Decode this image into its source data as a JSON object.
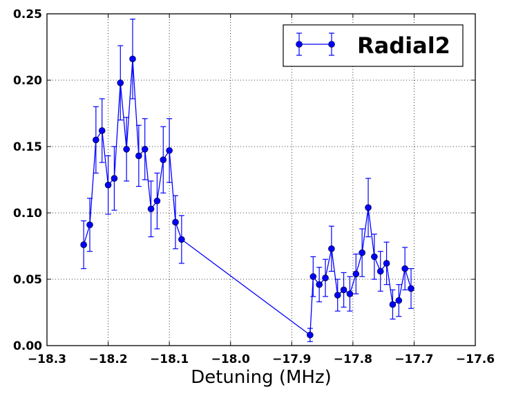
{
  "chart_data": {
    "type": "scatter",
    "title": "",
    "xlabel": "Detuning (MHz)",
    "ylabel": "",
    "xlim": [
      -18.3,
      -17.6
    ],
    "ylim": [
      0.0,
      0.25
    ],
    "xticks": [
      -18.3,
      -18.2,
      -18.1,
      -18.0,
      -17.9,
      -17.8,
      -17.7,
      -17.6
    ],
    "xtick_labels": [
      "−18.3",
      "−18.2",
      "−18.1",
      "−18.0",
      "−17.9",
      "−17.8",
      "−17.7",
      "−17.6"
    ],
    "yticks": [
      0.0,
      0.05,
      0.1,
      0.15,
      0.2,
      0.25
    ],
    "ytick_labels": [
      "0.00",
      "0.05",
      "0.10",
      "0.15",
      "0.20",
      "0.25"
    ],
    "grid": true,
    "grid_style": "dotted",
    "legend_position": "top-right",
    "series": [
      {
        "name": "Radial2",
        "color": "#0000ff",
        "marker": "circle",
        "line": true,
        "points": [
          {
            "x": -18.24,
            "y": 0.076,
            "err": 0.018
          },
          {
            "x": -18.23,
            "y": 0.091,
            "err": 0.02
          },
          {
            "x": -18.22,
            "y": 0.155,
            "err": 0.025
          },
          {
            "x": -18.21,
            "y": 0.162,
            "err": 0.024
          },
          {
            "x": -18.2,
            "y": 0.121,
            "err": 0.022
          },
          {
            "x": -18.19,
            "y": 0.126,
            "err": 0.024
          },
          {
            "x": -18.18,
            "y": 0.198,
            "err": 0.028
          },
          {
            "x": -18.17,
            "y": 0.148,
            "err": 0.024
          },
          {
            "x": -18.16,
            "y": 0.216,
            "err": 0.03
          },
          {
            "x": -18.15,
            "y": 0.143,
            "err": 0.023
          },
          {
            "x": -18.14,
            "y": 0.148,
            "err": 0.023
          },
          {
            "x": -18.13,
            "y": 0.103,
            "err": 0.021
          },
          {
            "x": -18.12,
            "y": 0.109,
            "err": 0.021
          },
          {
            "x": -18.11,
            "y": 0.14,
            "err": 0.025
          },
          {
            "x": -18.1,
            "y": 0.147,
            "err": 0.024
          },
          {
            "x": -18.09,
            "y": 0.093,
            "err": 0.02
          },
          {
            "x": -18.08,
            "y": 0.08,
            "err": 0.018
          },
          {
            "x": -17.87,
            "y": 0.008,
            "err": 0.005
          },
          {
            "x": -17.865,
            "y": 0.052,
            "err": 0.015
          },
          {
            "x": -17.855,
            "y": 0.046,
            "err": 0.013
          },
          {
            "x": -17.845,
            "y": 0.051,
            "err": 0.014
          },
          {
            "x": -17.835,
            "y": 0.073,
            "err": 0.017
          },
          {
            "x": -17.825,
            "y": 0.038,
            "err": 0.012
          },
          {
            "x": -17.815,
            "y": 0.042,
            "err": 0.013
          },
          {
            "x": -17.805,
            "y": 0.039,
            "err": 0.013
          },
          {
            "x": -17.795,
            "y": 0.054,
            "err": 0.015
          },
          {
            "x": -17.785,
            "y": 0.07,
            "err": 0.018
          },
          {
            "x": -17.775,
            "y": 0.104,
            "err": 0.022
          },
          {
            "x": -17.765,
            "y": 0.067,
            "err": 0.017
          },
          {
            "x": -17.755,
            "y": 0.056,
            "err": 0.015
          },
          {
            "x": -17.745,
            "y": 0.062,
            "err": 0.016
          },
          {
            "x": -17.735,
            "y": 0.031,
            "err": 0.011
          },
          {
            "x": -17.725,
            "y": 0.034,
            "err": 0.012
          },
          {
            "x": -17.715,
            "y": 0.058,
            "err": 0.016
          },
          {
            "x": -17.705,
            "y": 0.043,
            "err": 0.015
          }
        ]
      }
    ]
  }
}
